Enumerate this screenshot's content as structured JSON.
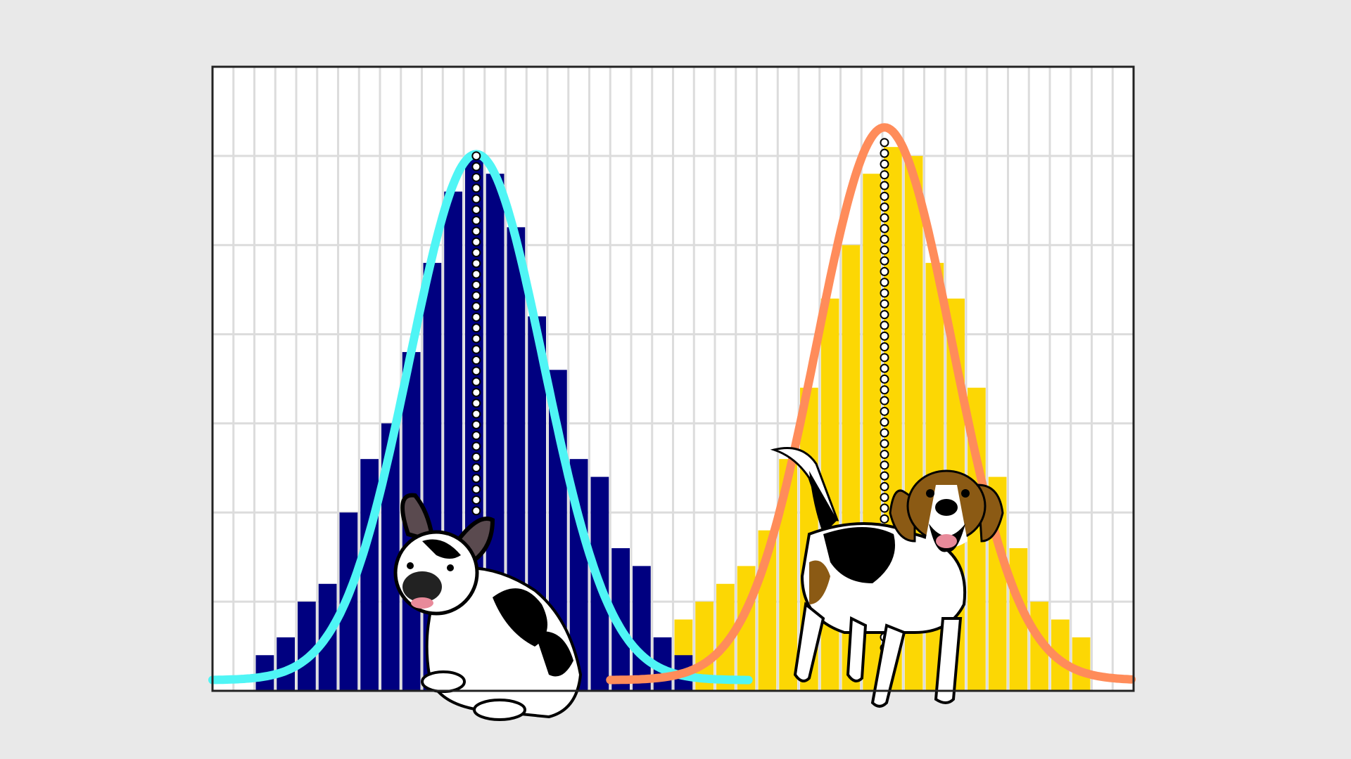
{
  "chart_data": {
    "type": "bar",
    "title": "",
    "xlabel": "",
    "ylabel": "",
    "bins": 44,
    "ylim": [
      0,
      7
    ],
    "grid": true,
    "legend": "none",
    "series": [
      {
        "color": "#000080",
        "curve_color": "#4ff5f5",
        "start_bin": 2,
        "values": [
          0.4,
          0.6,
          1.0,
          1.2,
          2.0,
          2.6,
          3.0,
          3.8,
          4.8,
          5.6,
          6.0,
          5.8,
          5.2,
          4.2,
          3.6,
          2.6,
          2.4,
          1.6,
          1.4,
          0.6,
          0.4
        ],
        "fit": {
          "mean_bin": 12.6,
          "sd_bins": 3.2,
          "peak": 5.9
        },
        "mean_marker": "dotted-line"
      },
      {
        "color": "#fcd704",
        "curve_color": "#ff8c5a",
        "start_bin": 20,
        "values": [
          0.3,
          0.4,
          0.8,
          1.0,
          1.2,
          1.4,
          1.8,
          2.6,
          3.4,
          4.4,
          5.0,
          5.8,
          6.1,
          6.0,
          4.8,
          4.4,
          3.4,
          2.4,
          1.6,
          1.0,
          0.8,
          0.6
        ],
        "fit": {
          "mean_bin": 32.1,
          "sd_bins": 3.25,
          "peak": 6.2
        },
        "mean_marker": "dotted-line"
      }
    ]
  }
}
